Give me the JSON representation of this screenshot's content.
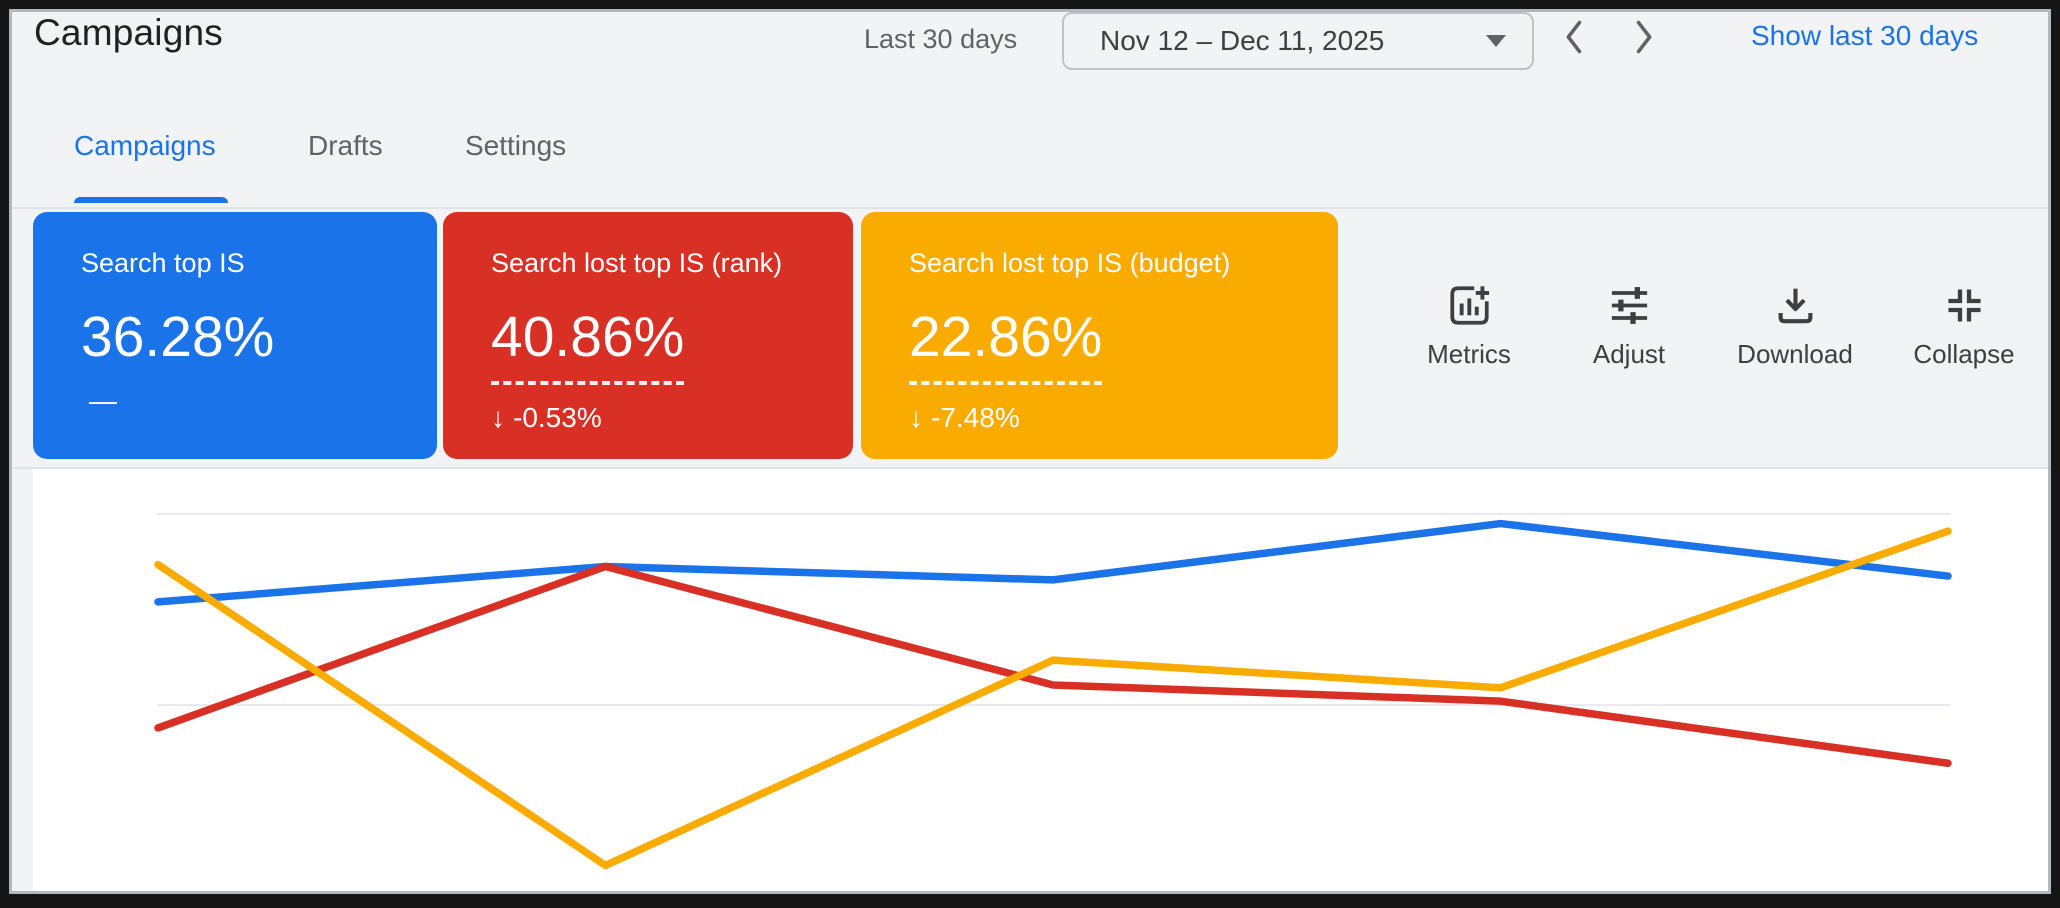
{
  "header": {
    "title": "Campaigns",
    "range_preset_label": "Last 30 days",
    "date_range_value": "Nov 12 – Dec 11, 2025",
    "show_last_link": "Show last 30 days"
  },
  "tabs": [
    {
      "label": "Campaigns",
      "active": true
    },
    {
      "label": "Drafts",
      "active": false
    },
    {
      "label": "Settings",
      "active": false
    }
  ],
  "scorecards": [
    {
      "label": "Search top IS",
      "value": "36.28%",
      "delta_arrow": "",
      "delta_text": "—",
      "color": "#1a73e8",
      "dashed_underline": false
    },
    {
      "label": "Search lost top IS (rank)",
      "value": "40.86%",
      "delta_arrow": "↓",
      "delta_text": "-0.53%",
      "color": "#d93025",
      "dashed_underline": true
    },
    {
      "label": "Search lost top IS (budget)",
      "value": "22.86%",
      "delta_arrow": "↓",
      "delta_text": "-7.48%",
      "color": "#f9ab00",
      "dashed_underline": true
    }
  ],
  "toolbar": {
    "buttons": [
      {
        "label": "Metrics",
        "icon": "bar-chart-plus-icon"
      },
      {
        "label": "Adjust",
        "icon": "sliders-icon"
      },
      {
        "label": "Download",
        "icon": "download-icon"
      },
      {
        "label": "Collapse",
        "icon": "collapse-icon"
      }
    ]
  },
  "colors": {
    "accent_blue": "#1a73e8",
    "card_red": "#d93025",
    "card_yellow": "#f9ab00",
    "text_primary": "#202124",
    "text_secondary": "#5f6368",
    "gridline": "#e8eaed"
  },
  "chart_data": {
    "type": "line",
    "x": [
      1,
      2,
      3,
      4,
      5
    ],
    "x_tick_labels_visible": false,
    "y_tick_labels_visible": false,
    "title": "",
    "xlabel": "",
    "ylabel": "",
    "series": [
      {
        "name": "Search top IS",
        "color": "#1a73e8",
        "values": [
          30.8,
          34.5,
          33.1,
          39.0,
          33.5
        ]
      },
      {
        "name": "Search lost top IS (rank)",
        "color": "#d93025",
        "values": [
          17.6,
          34.5,
          22.1,
          20.4,
          13.9
        ]
      },
      {
        "name": "Search lost top IS (budget)",
        "color": "#f9ab00",
        "values": [
          34.7,
          3.2,
          24.7,
          21.8,
          38.2
        ]
      }
    ],
    "ylim": [
      0,
      44
    ],
    "gridlines_y": [
      20,
      40
    ],
    "grid": "horizontal",
    "legend": "none",
    "units": "percent (estimated from unlabeled gridlines; series colors match scorecards)"
  }
}
